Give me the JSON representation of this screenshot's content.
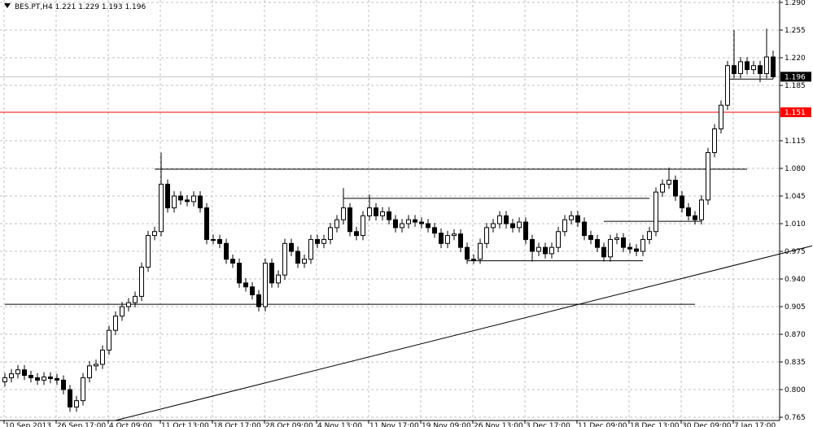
{
  "chart_data": {
    "type": "candlestick",
    "title": "BES.PT,H4  1.221 1.229 1.193 1.196",
    "ylim": [
      0.7609,
      1.2931
    ],
    "yticks": [
      {
        "value": 1.29,
        "label": "1.290"
      },
      1.255,
      {
        "value": 1.22,
        "label": "1.220"
      },
      1.185,
      1.115,
      {
        "value": 1.08,
        "label": "1.080"
      },
      1.045,
      {
        "value": 1.01,
        "label": "1.010"
      },
      0.975,
      {
        "value": 0.94,
        "label": "0.940"
      },
      0.905,
      {
        "value": 0.87,
        "label": "0.870"
      },
      0.835,
      {
        "value": 0.8,
        "label": "0.800"
      },
      0.765
    ],
    "x_labels": [
      "10 Sep 2013",
      "26 Sep 17:00",
      "4 Oct 09:00",
      "11 Oct 13:00",
      "18 Oct 17:00",
      "28 Oct 09:00",
      "4 Nov 13:00",
      "11 Nov 17:00",
      "19 Nov 09:00",
      "26 Nov 13:00",
      "3 Dec 17:00",
      "11 Dec 09:00",
      "18 Dec 13:00",
      "30 Dec 09:00",
      "7 Jan 17:00"
    ],
    "grid": true,
    "up_color": "#ffffff",
    "down_color": "#000000",
    "open": [
      0.81,
      0.815,
      0.82,
      0.825,
      0.818,
      0.815,
      0.812,
      0.816,
      0.814,
      0.812,
      0.8,
      0.778,
      0.786,
      0.815,
      0.83,
      0.832,
      0.85,
      0.875,
      0.893,
      0.905,
      0.91,
      0.918,
      0.955,
      0.995,
      1.0,
      1.06,
      1.03,
      1.045,
      1.04,
      1.038,
      1.045,
      1.03,
      0.99,
      0.99,
      0.985,
      0.965,
      0.96,
      0.935,
      0.93,
      0.92,
      0.905,
      0.96,
      0.935,
      0.945,
      0.985,
      0.975,
      0.96,
      0.965,
      0.99,
      0.985,
      0.99,
      1.005,
      1.015,
      1.03,
      1.0,
      0.995,
      1.02,
      1.03,
      1.02,
      1.025,
      1.015,
      1.005,
      1.01,
      1.015,
      1.012,
      1.01,
      1.005,
      0.998,
      0.985,
      0.995,
      0.997,
      0.98,
      0.965,
      0.965,
      0.985,
      1.005,
      1.01,
      1.02,
      1.01,
      1.005,
      1.012,
      0.99,
      0.975,
      0.98,
      0.972,
      0.98,
      1.0,
      1.015,
      1.02,
      1.012,
      0.995,
      0.99,
      0.98,
      0.968,
      0.99,
      0.992,
      0.98,
      0.978,
      0.975,
      0.99,
      1.0,
      1.05,
      1.06,
      1.065,
      1.045,
      1.03,
      1.02,
      1.015,
      1.04,
      1.1,
      1.13,
      1.16,
      1.21,
      1.2,
      1.215,
      1.205,
      1.21,
      1.2,
      1.221
    ],
    "high": [
      0.821,
      0.826,
      0.831,
      0.831,
      0.824,
      0.821,
      0.822,
      0.822,
      0.82,
      0.818,
      0.806,
      0.792,
      0.821,
      0.836,
      0.838,
      0.856,
      0.881,
      0.899,
      0.911,
      0.916,
      0.924,
      0.961,
      1.001,
      1.006,
      1.1,
      1.066,
      1.051,
      1.051,
      1.046,
      1.051,
      1.051,
      1.036,
      0.996,
      0.996,
      0.991,
      0.971,
      0.966,
      0.941,
      0.936,
      0.926,
      0.966,
      0.966,
      0.951,
      0.991,
      0.991,
      0.981,
      0.971,
      0.996,
      0.996,
      0.996,
      1.011,
      1.021,
      1.055,
      1.036,
      1.006,
      1.026,
      1.047,
      1.036,
      1.031,
      1.031,
      1.021,
      1.016,
      1.021,
      1.021,
      1.018,
      1.016,
      1.011,
      1.004,
      1.001,
      1.003,
      1.003,
      0.986,
      0.971,
      0.991,
      1.011,
      1.016,
      1.026,
      1.026,
      1.016,
      1.018,
      1.018,
      0.996,
      0.986,
      0.986,
      0.986,
      1.006,
      1.021,
      1.026,
      1.026,
      1.018,
      1.001,
      0.996,
      0.986,
      0.996,
      0.998,
      0.998,
      0.986,
      0.984,
      0.996,
      1.006,
      1.056,
      1.066,
      1.081,
      1.071,
      1.051,
      1.036,
      1.026,
      1.046,
      1.106,
      1.136,
      1.166,
      1.216,
      1.255,
      1.221,
      1.221,
      1.216,
      1.216,
      1.257,
      1.229
    ],
    "low": [
      0.804,
      0.809,
      0.814,
      0.812,
      0.809,
      0.806,
      0.806,
      0.808,
      0.806,
      0.794,
      0.772,
      0.772,
      0.78,
      0.809,
      0.824,
      0.826,
      0.844,
      0.869,
      0.887,
      0.899,
      0.904,
      0.912,
      0.949,
      0.989,
      0.994,
      1.024,
      1.024,
      1.034,
      1.032,
      1.032,
      1.024,
      0.984,
      0.984,
      0.979,
      0.959,
      0.954,
      0.929,
      0.924,
      0.914,
      0.899,
      0.899,
      0.929,
      0.929,
      0.939,
      0.969,
      0.954,
      0.954,
      0.959,
      0.979,
      0.979,
      0.984,
      0.999,
      1.009,
      0.994,
      0.989,
      0.989,
      1.014,
      1.014,
      1.014,
      1.009,
      0.999,
      0.999,
      1.004,
      1.006,
      1.004,
      0.999,
      0.992,
      0.979,
      0.979,
      0.989,
      0.974,
      0.959,
      0.959,
      0.959,
      0.979,
      0.999,
      1.004,
      1.004,
      0.999,
      0.999,
      0.984,
      0.962,
      0.969,
      0.966,
      0.966,
      0.974,
      0.994,
      1.009,
      1.006,
      0.989,
      0.984,
      0.974,
      0.962,
      0.962,
      0.984,
      0.974,
      0.972,
      0.969,
      0.969,
      0.984,
      0.994,
      1.044,
      1.054,
      1.039,
      1.024,
      1.014,
      1.009,
      1.009,
      1.034,
      1.094,
      1.124,
      1.154,
      1.194,
      1.194,
      1.199,
      1.199,
      1.189,
      1.194,
      1.193
    ],
    "close": [
      0.815,
      0.82,
      0.825,
      0.818,
      0.815,
      0.812,
      0.816,
      0.814,
      0.812,
      0.8,
      0.778,
      0.786,
      0.815,
      0.83,
      0.832,
      0.85,
      0.875,
      0.893,
      0.905,
      0.91,
      0.918,
      0.955,
      0.995,
      1.0,
      1.06,
      1.03,
      1.045,
      1.04,
      1.038,
      1.045,
      1.03,
      0.99,
      0.99,
      0.985,
      0.965,
      0.96,
      0.935,
      0.93,
      0.92,
      0.905,
      0.96,
      0.935,
      0.945,
      0.985,
      0.975,
      0.96,
      0.965,
      0.99,
      0.985,
      0.99,
      1.005,
      1.015,
      1.03,
      1.0,
      0.995,
      1.02,
      1.03,
      1.02,
      1.025,
      1.015,
      1.005,
      1.01,
      1.015,
      1.012,
      1.01,
      1.005,
      0.998,
      0.985,
      0.995,
      0.997,
      0.98,
      0.965,
      0.965,
      0.985,
      1.005,
      1.01,
      1.02,
      1.01,
      1.005,
      1.012,
      0.99,
      0.975,
      0.98,
      0.972,
      0.98,
      1.0,
      1.015,
      1.02,
      1.012,
      0.995,
      0.99,
      0.98,
      0.968,
      0.99,
      0.992,
      0.98,
      0.978,
      0.975,
      0.99,
      1.0,
      1.05,
      1.06,
      1.065,
      1.045,
      1.03,
      1.02,
      1.015,
      1.04,
      1.1,
      1.13,
      1.16,
      1.21,
      1.2,
      1.215,
      1.205,
      1.21,
      1.2,
      1.221,
      1.196
    ],
    "levels": [
      {
        "value": 1.079,
        "from": 23,
        "to": 114
      },
      {
        "value": 1.042,
        "from": 52,
        "to": 99
      },
      {
        "value": 1.013,
        "from": 92,
        "to": 107
      },
      {
        "value": 0.963,
        "from": 71,
        "to": 98
      },
      {
        "value": 0.908,
        "from": 0,
        "to": 106
      },
      {
        "value": 1.193,
        "from": 111,
        "to": 118
      }
    ],
    "trendline": {
      "from": [
        17,
        0.761
      ],
      "to": [
        124,
        0.982
      ]
    },
    "price_lines": [
      {
        "value": 1.196,
        "label": "1.196",
        "color": "#c0c0c0",
        "label_bg": "#000000"
      },
      {
        "value": 1.151,
        "label": "1.151",
        "color": "#ff0000",
        "label_bg": "#ff0000"
      }
    ]
  }
}
